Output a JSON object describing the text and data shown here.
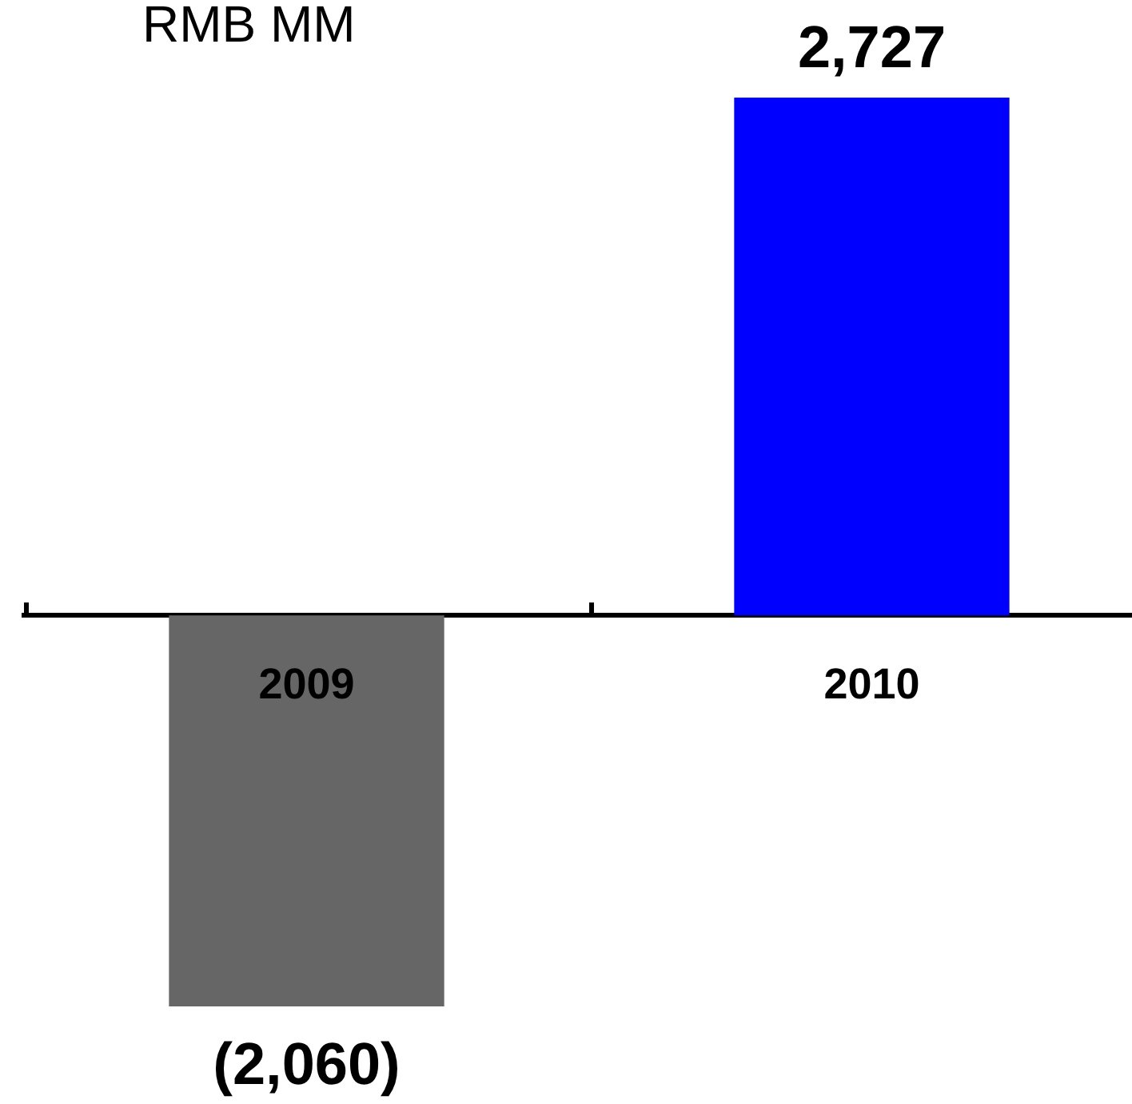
{
  "chart_data": {
    "type": "bar",
    "ylabel": "RMB MM",
    "categories": [
      "2009",
      "2010"
    ],
    "values": [
      -2060,
      2727
    ],
    "colors": [
      "#666666",
      "#0000ff"
    ],
    "value_labels": [
      "(2,060)",
      "2,727"
    ],
    "tick_labels": "x"
  }
}
